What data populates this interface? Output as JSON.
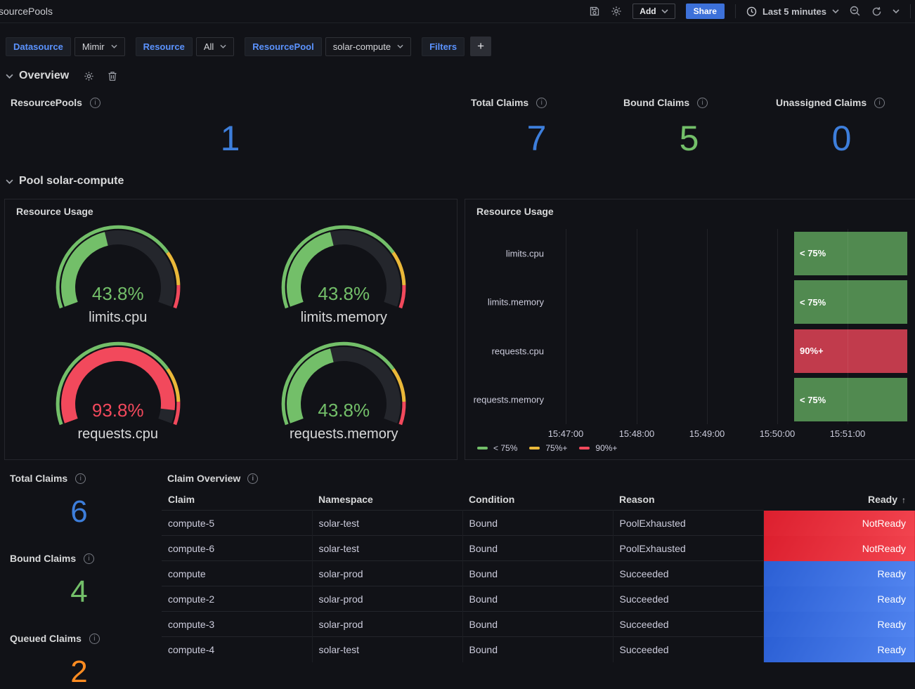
{
  "topbar": {
    "title": "sourcePools",
    "add_label": "Add",
    "share_label": "Share",
    "time_range": "Last 5 minutes"
  },
  "filters": {
    "datasource_label": "Datasource",
    "datasource_value": "Mimir",
    "resource_label": "Resource",
    "resource_value": "All",
    "resourcepool_label": "ResourcePool",
    "resourcepool_value": "solar-compute",
    "filters_label": "Filters",
    "add_filter_label": "+"
  },
  "row_overview": {
    "title": "Overview"
  },
  "row_pool": {
    "title": "Pool solar-compute"
  },
  "colors": {
    "blue": "#3D7EDB",
    "green": "#73BF69",
    "orange": "#FF8C21",
    "red": "#F2495C",
    "yellow": "#EAB839",
    "gauge_track": "#24262C",
    "timeline_green": "#518A50",
    "timeline_red": "#C13B4C",
    "ready_blue_gradient_start": "#2B5FD4",
    "ready_blue_gradient_end": "#5285F0",
    "ready_red_gradient_start": "#DC1F2E",
    "ready_red_gradient_end": "#F2444F"
  },
  "stats_top": [
    {
      "label": "ResourcePools",
      "value": "1",
      "color": "#3D7EDB"
    },
    {
      "label": "Total Claims",
      "value": "7",
      "color": "#3D7EDB"
    },
    {
      "label": "Bound Claims",
      "value": "5",
      "color": "#73BF69"
    },
    {
      "label": "Unassigned Claims",
      "value": "0",
      "color": "#3D7EDB"
    }
  ],
  "gauge_panel": {
    "title": "Resource Usage",
    "gauges": [
      {
        "label": "limits.cpu",
        "value": "43.8%",
        "pct": 43.8,
        "color": "#73BF69"
      },
      {
        "label": "limits.memory",
        "value": "43.8%",
        "pct": 43.8,
        "color": "#73BF69"
      },
      {
        "label": "requests.cpu",
        "value": "93.8%",
        "pct": 93.8,
        "color": "#F2495C"
      },
      {
        "label": "requests.memory",
        "value": "43.8%",
        "pct": 43.8,
        "color": "#73BF69"
      }
    ],
    "thresholds": {
      "green_until_pct": 75,
      "yellow_until_pct": 90,
      "red_until_pct": 100
    }
  },
  "timeline_panel": {
    "title": "Resource Usage",
    "rows": [
      {
        "label": "limits.cpu",
        "state": "< 75%",
        "color": "#518A50"
      },
      {
        "label": "limits.memory",
        "state": "< 75%",
        "color": "#518A50"
      },
      {
        "label": "requests.cpu",
        "state": "90%+",
        "color": "#C13B4C"
      },
      {
        "label": "requests.memory",
        "state": "< 75%",
        "color": "#518A50"
      }
    ],
    "ticks": [
      "15:47:00",
      "15:48:00",
      "15:49:00",
      "15:50:00",
      "15:51:00"
    ],
    "legend": [
      {
        "label": "< 75%",
        "color": "#73BF69"
      },
      {
        "label": "75%+",
        "color": "#EAB839"
      },
      {
        "label": "90%+",
        "color": "#F2495C"
      }
    ]
  },
  "stats_bottom": [
    {
      "label": "Total Claims",
      "value": "6",
      "color": "#3D7EDB"
    },
    {
      "label": "Bound Claims",
      "value": "4",
      "color": "#73BF69"
    },
    {
      "label": "Queued Claims",
      "value": "2",
      "color": "#FF8C21"
    }
  ],
  "table_panel": {
    "title": "Claim Overview",
    "columns": [
      "Claim",
      "Namespace",
      "Condition",
      "Reason",
      "Ready"
    ],
    "sort_column": "Ready",
    "sort_arrow": "↑",
    "rows": [
      {
        "claim": "compute-5",
        "namespace": "solar-test",
        "condition": "Bound",
        "reason": "PoolExhausted",
        "ready": "NotReady",
        "ready_color": "red"
      },
      {
        "claim": "compute-6",
        "namespace": "solar-test",
        "condition": "Bound",
        "reason": "PoolExhausted",
        "ready": "NotReady",
        "ready_color": "red"
      },
      {
        "claim": "compute",
        "namespace": "solar-prod",
        "condition": "Bound",
        "reason": "Succeeded",
        "ready": "Ready",
        "ready_color": "blue"
      },
      {
        "claim": "compute-2",
        "namespace": "solar-prod",
        "condition": "Bound",
        "reason": "Succeeded",
        "ready": "Ready",
        "ready_color": "blue"
      },
      {
        "claim": "compute-3",
        "namespace": "solar-prod",
        "condition": "Bound",
        "reason": "Succeeded",
        "ready": "Ready",
        "ready_color": "blue"
      },
      {
        "claim": "compute-4",
        "namespace": "solar-test",
        "condition": "Bound",
        "reason": "Succeeded",
        "ready": "Ready",
        "ready_color": "blue"
      }
    ]
  }
}
